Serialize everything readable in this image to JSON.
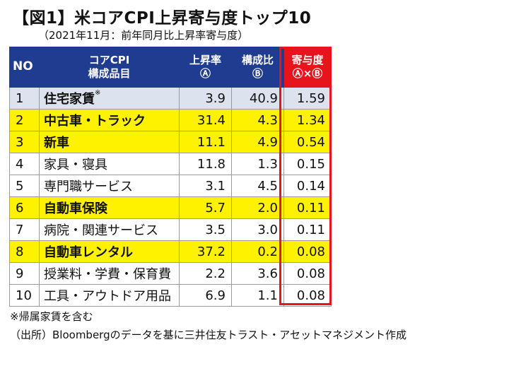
{
  "title": "【図1】米コアCPI上昇寄与度トップ10",
  "subtitle": "（2021年11月：前年同月比上昇率寄与度）",
  "headers": {
    "no": "NO",
    "item_line1": "コアCPI",
    "item_line2": "構成品目",
    "rate_line1": "上昇率",
    "rate_line2": "Ⓐ",
    "comp_line1": "構成比",
    "comp_line2": "Ⓑ",
    "contrib_line1": "寄与度",
    "contrib_line2": "Ⓐ×Ⓑ"
  },
  "rows": [
    {
      "no": "1",
      "name": "住宅家賃",
      "sup": "※",
      "rate": "3.9",
      "composition": "40.9",
      "contribution": "1.59"
    },
    {
      "no": "2",
      "name": "中古車・トラック",
      "rate": "31.4",
      "composition": "4.3",
      "contribution": "1.34"
    },
    {
      "no": "3",
      "name": "新車",
      "rate": "11.1",
      "composition": "4.9",
      "contribution": "0.54"
    },
    {
      "no": "4",
      "name": "家具・寝具",
      "rate": "11.8",
      "composition": "1.3",
      "contribution": "0.15"
    },
    {
      "no": "5",
      "name": "専門職サービス",
      "rate": "3.1",
      "composition": "4.5",
      "contribution": "0.14"
    },
    {
      "no": "6",
      "name": "自動車保険",
      "rate": "5.7",
      "composition": "2.0",
      "contribution": "0.11"
    },
    {
      "no": "7",
      "name": "病院・関連サービス",
      "rate": "3.5",
      "composition": "3.0",
      "contribution": "0.11"
    },
    {
      "no": "8",
      "name": "自動車レンタル",
      "rate": "37.2",
      "composition": "0.2",
      "contribution": "0.08"
    },
    {
      "no": "9",
      "name": "授業料・学費・保育費",
      "rate": "2.2",
      "composition": "3.6",
      "contribution": "0.08"
    },
    {
      "no": "10",
      "name": "工具・アウトドア用品",
      "rate": "6.9",
      "composition": "1.1",
      "contribution": "0.08"
    }
  ],
  "note": "※帰属家賃を含む",
  "source": "（出所）Bloombergのデータを基に三井住友トラスト・アセットマネジメント作成",
  "colors": {
    "header_bg": "#1f3c91",
    "highlight_header_bg": "#e8141c",
    "highlight_row_bg": "#fff200",
    "first_row_bg": "#dde3ee"
  }
}
